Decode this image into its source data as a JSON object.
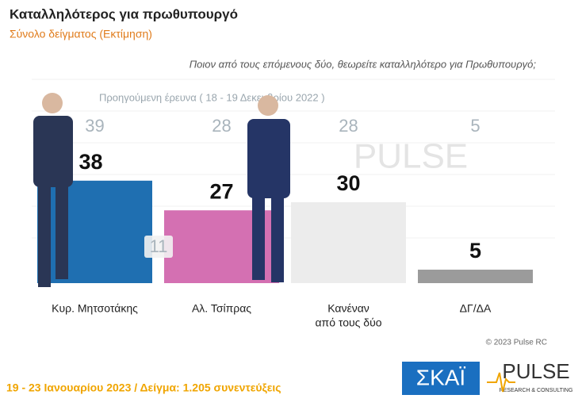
{
  "chart_data": {
    "type": "bar",
    "title": "Καταλληλότερος για πρωθυπουργό",
    "subtitle": "Σύνολο δείγματος   (Εκτίμηση)",
    "question": "Ποιον από τους επόμενους δύο, θεωρείτε καταλληλότερο για Πρωθυπουργό;",
    "previous_label": "Προηγούμενη έρευνα  ( 18 - 19  Δεκεμβρίου  2022 )",
    "categories": [
      [
        "Κυρ. Μητσοτάκης"
      ],
      [
        "Αλ. Τσίπρας"
      ],
      [
        "Κανέναν",
        "από τους δύο"
      ],
      [
        "ΔΓ/ΔΑ"
      ]
    ],
    "values": [
      38,
      27,
      30,
      5
    ],
    "previous_values": [
      39,
      28,
      28,
      5
    ],
    "colors": [
      "#1f6fb1",
      "#d470b2",
      "#ececec",
      "#9b9b9b"
    ],
    "gap_label": 11,
    "watermark": "PULSE",
    "copyright": "© 2023 Pulse RC",
    "footer": "19 - 23  Ιανουαρίου  2023  /  Δείγμα:  1.205  συνεντεύξεις",
    "logos": [
      "ΣΚΑΪ",
      "PULSE",
      "RESEARCH & CONSULTING"
    ]
  }
}
